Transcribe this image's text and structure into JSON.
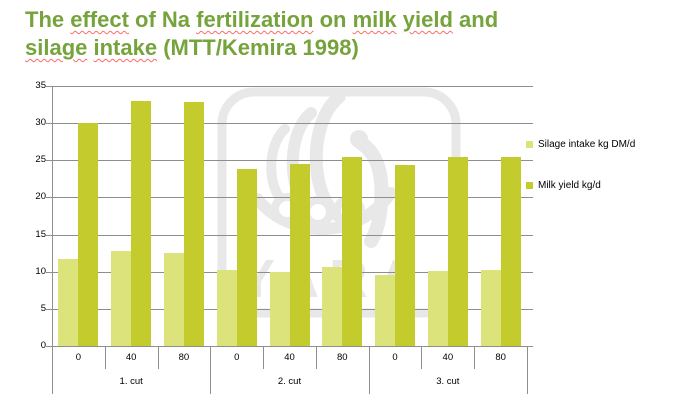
{
  "title": {
    "text": "The effect of Na fertilization on milk yield and silage intake (MTT/Kemira 1998)",
    "color": "#76a33c",
    "spellcheck_underline_color": "#ff6a6a",
    "lines": [
      {
        "parts": [
          {
            "text": "The ",
            "flagged": false
          },
          {
            "text": "effect",
            "flagged": true
          },
          {
            "text": " of Na ",
            "flagged": false
          },
          {
            "text": "fertilization",
            "flagged": true
          },
          {
            "text": " on ",
            "flagged": false
          },
          {
            "text": "milk",
            "flagged": true
          },
          {
            "text": " ",
            "flagged": false
          },
          {
            "text": "yield",
            "flagged": true
          },
          {
            "text": " and",
            "flagged": false
          }
        ]
      },
      {
        "parts": [
          {
            "text": "silage",
            "flagged": true
          },
          {
            "text": " ",
            "flagged": false
          },
          {
            "text": "intake",
            "flagged": true
          },
          {
            "text": " (MTT/Kemira 1998)",
            "flagged": false
          }
        ]
      }
    ]
  },
  "watermark": {
    "name": "yara-logo",
    "text": "YARA",
    "color": "#e8e8e8"
  },
  "chart_data": {
    "type": "bar",
    "title": "The effect of Na fertilization on milk yield and silage intake (MTT/Kemira 1998)",
    "categories": [
      "0",
      "40",
      "80",
      "0",
      "40",
      "80",
      "0",
      "40",
      "80"
    ],
    "group_labels": [
      "1. cut",
      "2. cut",
      "3. cut"
    ],
    "xlabel": "",
    "ylabel": "",
    "ylim": [
      0,
      35
    ],
    "yticks": [
      0,
      5,
      10,
      15,
      20,
      25,
      30,
      35
    ],
    "grid": true,
    "gridline_color": "#8e8e8e",
    "legend_position": "right",
    "series": [
      {
        "name": "Silage intake kg DM/d",
        "color": "#dde37b",
        "values": [
          11.7,
          12.8,
          12.5,
          10.2,
          10.0,
          10.7,
          9.5,
          10.1,
          10.2
        ]
      },
      {
        "name": "Milk yield kg/d",
        "color": "#c3cc2c",
        "values": [
          30.0,
          33.0,
          32.8,
          23.8,
          24.5,
          25.5,
          24.4,
          25.4,
          25.4
        ]
      }
    ]
  }
}
